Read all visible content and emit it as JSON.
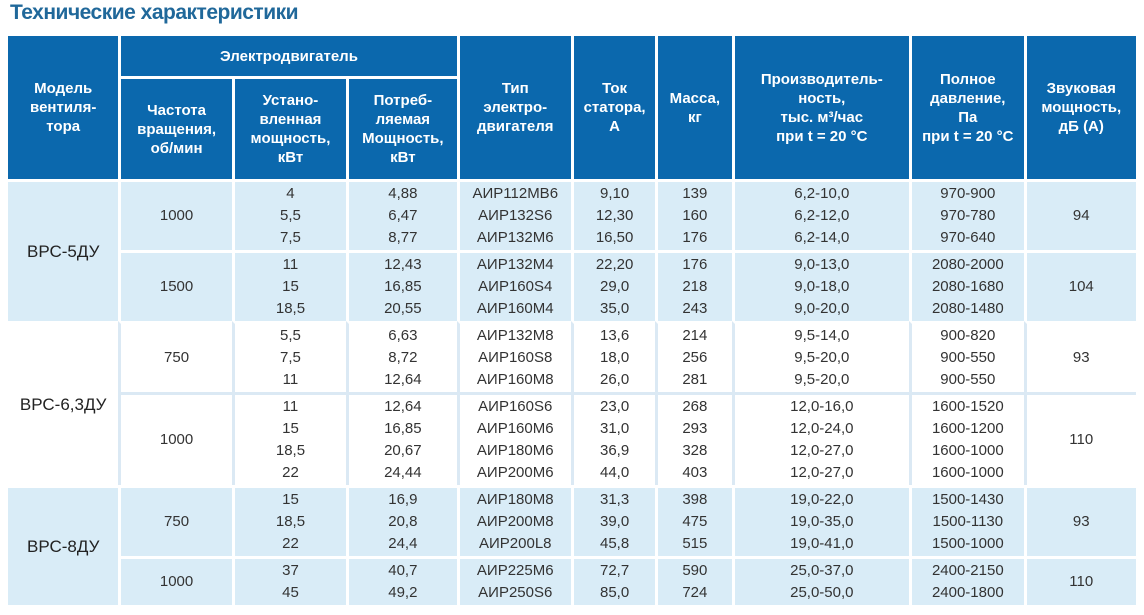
{
  "page_title": "Технические характеристики",
  "colors": {
    "header_bg": "#0b68ad",
    "row_shade": "#d9ecf7",
    "row_white": "#ffffff",
    "divider_on_white": "#dbe9f4",
    "title_text": "#20689a",
    "header_text": "#ffffff",
    "body_text": "#333333"
  },
  "table": {
    "headers": {
      "model": "Модель\nвентиля-\nтора",
      "motor_group": "Электродвигатель",
      "frequency": "Частота\nвращения,\nоб/мин",
      "installed_power": "Устано-\nвленная\nмощность,\nкВт",
      "consumed_power": "Потреб-\nляемая\nМощность,\nкВт",
      "motor_type": "Тип\nэлектро-\nдвигателя",
      "stator_current": "Ток\nстатора,\nА",
      "mass": "Масса,\nкг",
      "capacity": "Производитель-\nность,\nтыс. м³/час\nпри t = 20 °C",
      "pressure": "Полное\nдавление,\nПа\nпри t = 20 °C",
      "sound_power": "Звуковая\nмощность,\nдБ (А)"
    },
    "groups": [
      {
        "model": "ВРС-5ДУ",
        "shaded": true,
        "rows": [
          {
            "frequency": "1000",
            "installed_power": [
              "4",
              "5,5",
              "7,5"
            ],
            "consumed_power": [
              "4,88",
              "6,47",
              "8,77"
            ],
            "motor_type": [
              "АИР112МВ6",
              "АИР132S6",
              "АИР132М6"
            ],
            "stator_current": [
              "9,10",
              "12,30",
              "16,50"
            ],
            "mass": [
              "139",
              "160",
              "176"
            ],
            "capacity": [
              "6,2-10,0",
              "6,2-12,0",
              "6,2-14,0"
            ],
            "pressure": [
              "970-900",
              "970-780",
              "970-640"
            ],
            "sound_power": "94"
          },
          {
            "frequency": "1500",
            "installed_power": [
              "11",
              "15",
              "18,5"
            ],
            "consumed_power": [
              "12,43",
              "16,85",
              "20,55"
            ],
            "motor_type": [
              "АИР132М4",
              "АИР160S4",
              "АИР160М4"
            ],
            "stator_current": [
              "22,20",
              "29,0",
              "35,0"
            ],
            "mass": [
              "176",
              "218",
              "243"
            ],
            "capacity": [
              "9,0-13,0",
              "9,0-18,0",
              "9,0-20,0"
            ],
            "pressure": [
              "2080-2000",
              "2080-1680",
              "2080-1480"
            ],
            "sound_power": "104"
          }
        ]
      },
      {
        "model": "ВРС-6,3ДУ",
        "shaded": false,
        "rows": [
          {
            "frequency": "750",
            "installed_power": [
              "5,5",
              "7,5",
              "11"
            ],
            "consumed_power": [
              "6,63",
              "8,72",
              "12,64"
            ],
            "motor_type": [
              "АИР132М8",
              "АИР160S8",
              "АИР160М8"
            ],
            "stator_current": [
              "13,6",
              "18,0",
              "26,0"
            ],
            "mass": [
              "214",
              "256",
              "281"
            ],
            "capacity": [
              "9,5-14,0",
              "9,5-20,0",
              "9,5-20,0"
            ],
            "pressure": [
              "900-820",
              "900-550",
              "900-550"
            ],
            "sound_power": "93"
          },
          {
            "frequency": "1000",
            "installed_power": [
              "11",
              "15",
              "18,5",
              "22"
            ],
            "consumed_power": [
              "12,64",
              "16,85",
              "20,67",
              "24,44"
            ],
            "motor_type": [
              "АИР160S6",
              "АИР160М6",
              "АИР180М6",
              "АИР200М6"
            ],
            "stator_current": [
              "23,0",
              "31,0",
              "36,9",
              "44,0"
            ],
            "mass": [
              "268",
              "293",
              "328",
              "403"
            ],
            "capacity": [
              "12,0-16,0",
              "12,0-24,0",
              "12,0-27,0",
              "12,0-27,0"
            ],
            "pressure": [
              "1600-1520",
              "1600-1200",
              "1600-1000",
              "1600-1000"
            ],
            "sound_power": "110"
          }
        ]
      },
      {
        "model": "ВРС-8ДУ",
        "shaded": true,
        "rows": [
          {
            "frequency": "750",
            "installed_power": [
              "15",
              "18,5",
              "22"
            ],
            "consumed_power": [
              "16,9",
              "20,8",
              "24,4"
            ],
            "motor_type": [
              "АИР180М8",
              "АИР200М8",
              "АИР200L8"
            ],
            "stator_current": [
              "31,3",
              "39,0",
              "45,8"
            ],
            "mass": [
              "398",
              "475",
              "515"
            ],
            "capacity": [
              "19,0-22,0",
              "19,0-35,0",
              "19,0-41,0"
            ],
            "pressure": [
              "1500-1430",
              "1500-1130",
              "1500-1000"
            ],
            "sound_power": "93"
          },
          {
            "frequency": "1000",
            "installed_power": [
              "37",
              "45"
            ],
            "consumed_power": [
              "40,7",
              "49,2"
            ],
            "motor_type": [
              "АИР225М6",
              "АИР250S6"
            ],
            "stator_current": [
              "72,7",
              "85,0"
            ],
            "mass": [
              "590",
              "724"
            ],
            "capacity": [
              "25,0-37,0",
              "25,0-50,0"
            ],
            "pressure": [
              "2400-2150",
              "2400-1800"
            ],
            "sound_power": "110"
          }
        ]
      }
    ]
  }
}
